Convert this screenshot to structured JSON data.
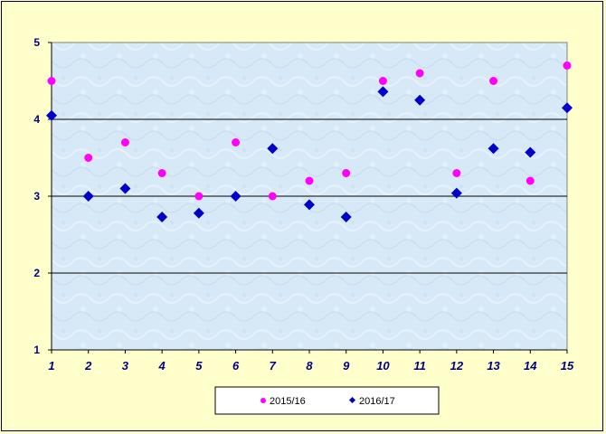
{
  "chart_data": {
    "type": "scatter",
    "categories": [
      "1",
      "2",
      "3",
      "4",
      "5",
      "6",
      "7",
      "8",
      "9",
      "10",
      "11",
      "12",
      "13",
      "14",
      "15"
    ],
    "series": [
      {
        "name": "2015/16",
        "color": "#ff00ff",
        "marker": "circle",
        "values": [
          4.5,
          3.5,
          3.7,
          3.3,
          3.0,
          3.7,
          3.0,
          3.2,
          3.3,
          4.5,
          4.6,
          3.3,
          4.5,
          3.2,
          4.7
        ]
      },
      {
        "name": "2016/17",
        "color": "#0000cc",
        "marker": "diamond",
        "values": [
          4.05,
          3.0,
          3.1,
          2.73,
          2.78,
          3.0,
          3.62,
          2.89,
          2.73,
          4.36,
          4.25,
          3.04,
          3.62,
          3.57,
          4.15
        ]
      }
    ],
    "yticks": [
      "1",
      "2",
      "3",
      "4",
      "5"
    ],
    "ylim": [
      1,
      5
    ],
    "grid": "horizontal major gridlines",
    "legend": "bottom-center"
  }
}
